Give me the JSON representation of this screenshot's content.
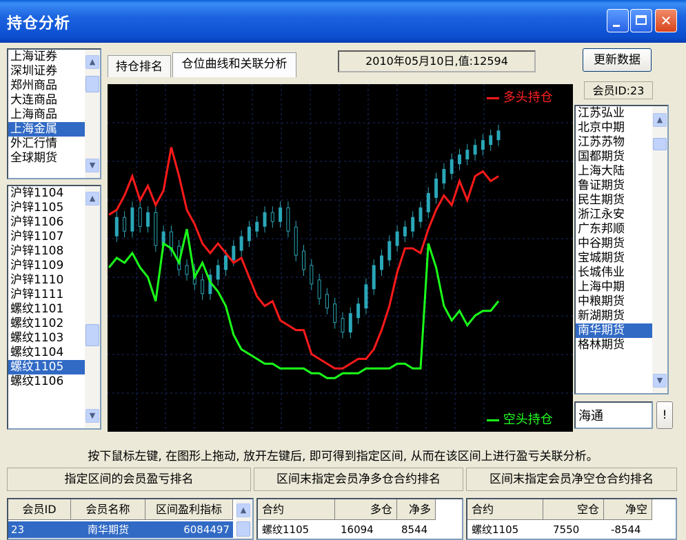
{
  "window": {
    "title": "持仓分析"
  },
  "markets": {
    "items": [
      "上海证券",
      "深圳证券",
      "郑州商品",
      "大连商品",
      "上海商品",
      "上海金属",
      "外汇行情",
      "全球期货"
    ],
    "selected_index": 5
  },
  "contracts": {
    "items": [
      "沪锌1104",
      "沪锌1105",
      "沪锌1106",
      "沪锌1107",
      "沪锌1108",
      "沪锌1109",
      "沪锌1110",
      "沪锌1111",
      "螺纹1101",
      "螺纹1102",
      "螺纹1103",
      "螺纹1104",
      "螺纹1105",
      "螺纹1106"
    ],
    "selected_index": 12
  },
  "tabs": [
    {
      "label": "持仓排名"
    },
    {
      "label": "仓位曲线和关联分析"
    }
  ],
  "date_value": "2010年05月10日,值:12594",
  "refresh_button": "更新数据",
  "member_id_label": "会员ID:23",
  "members": {
    "items": [
      "江苏弘业",
      "北京中期",
      "江苏苏物",
      "国都期货",
      "上海大陆",
      "鲁证期货",
      "民生期货",
      "浙江永安",
      "广东邦顺",
      "中谷期货",
      "宝城期货",
      "长城伟业",
      "上海中期",
      "中粮期货",
      "新湖期货",
      "南华期货",
      "格林期货"
    ],
    "selected_index": 15
  },
  "search": {
    "value": "海通",
    "button": "!"
  },
  "legend": {
    "long": "多头持仓",
    "short": "空头持仓"
  },
  "colors": {
    "long": "#ff1a1a",
    "short": "#1aff1a",
    "price": "#2aa7b8"
  },
  "chart_data": {
    "type": "line",
    "series": [
      {
        "name": "多头持仓",
        "values": [
          44,
          45,
          48,
          52,
          47,
          50,
          46,
          49,
          58,
          52,
          45,
          42,
          38,
          36,
          38,
          36,
          34,
          35,
          31,
          27,
          25,
          26,
          22,
          21,
          20,
          20,
          15,
          14,
          13,
          12,
          12,
          13,
          14,
          14,
          16,
          20,
          25,
          32,
          37,
          37,
          36,
          41,
          45,
          48,
          46,
          51,
          47,
          52,
          53,
          51,
          52
        ]
      },
      {
        "name": "空头持仓",
        "values": [
          33,
          35,
          34,
          36,
          33,
          31,
          26,
          38,
          37,
          34,
          41,
          31,
          34,
          30,
          28,
          25,
          19,
          16,
          15,
          14,
          13,
          13,
          12,
          12,
          12,
          12,
          11,
          11,
          10,
          10,
          11,
          11,
          11,
          12,
          12,
          12,
          12,
          13,
          13,
          12,
          12,
          38,
          33,
          25,
          22,
          24,
          21,
          23,
          24,
          24,
          26
        ]
      },
      {
        "name": "价格",
        "values": [
          40,
          43,
          41,
          45,
          42,
          44,
          38,
          40,
          37,
          33,
          32,
          30,
          28,
          31,
          33,
          35,
          37,
          39,
          41,
          42,
          44,
          43,
          45,
          41,
          36,
          33,
          30,
          27,
          25,
          22,
          20,
          23,
          25,
          29,
          33,
          35,
          38,
          40,
          41,
          43,
          45,
          48,
          51,
          53,
          55,
          56,
          57,
          58,
          59,
          60,
          61
        ]
      }
    ],
    "ylim": [
      0,
      70
    ]
  },
  "hint_text": "按下鼠标左键, 在图形上拖动, 放开左键后, 即可得到指定区间, 从而在该区间上进行盈亏关联分析。",
  "sections": {
    "left": {
      "title": "指定区间的会员盈亏排名",
      "columns": [
        "会员ID",
        "会员名称",
        "区间盈利指标"
      ],
      "row": [
        "23",
        "南华期货",
        "6084497"
      ]
    },
    "mid": {
      "title": "区间末指定会员净多仓合约排名",
      "columns": [
        "合约",
        "多仓",
        "净多"
      ],
      "row": [
        "螺纹1105",
        "16094",
        "8544"
      ]
    },
    "right": {
      "title": "区间末指定会员净空仓合约排名",
      "columns": [
        "合约",
        "空仓",
        "净空"
      ],
      "row": [
        "螺纹1105",
        "7550",
        "-8544"
      ]
    }
  }
}
